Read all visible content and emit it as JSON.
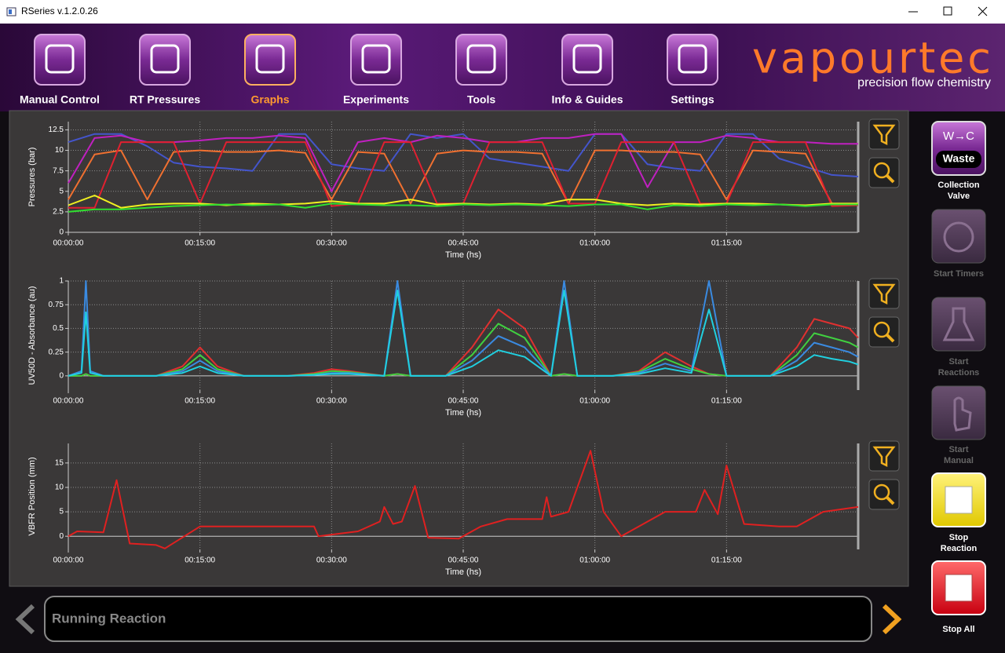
{
  "window": {
    "title": "RSeries v.1.2.0.26"
  },
  "nav": [
    "Manual Control",
    "RT Pressures",
    "Graphs",
    "Experiments",
    "Tools",
    "Info & Guides",
    "Settings"
  ],
  "logo": {
    "name": "vapourtec",
    "tagline": "precision flow chemistry"
  },
  "chart_data": [
    {
      "type": "line",
      "xlabel": "Time (hs)",
      "ylabel": "Pressures (bar)",
      "grid": true,
      "xlim": [
        0,
        90
      ],
      "ylim": [
        0,
        13.5
      ],
      "xticks": [
        {
          "value": 0,
          "label": "00:00:00"
        },
        {
          "value": 15,
          "label": "00:15:00"
        },
        {
          "value": 30,
          "label": "00:30:00"
        },
        {
          "value": 45,
          "label": "00:45:00"
        },
        {
          "value": 60,
          "label": "01:00:00"
        },
        {
          "value": 75,
          "label": "01:15:00"
        }
      ],
      "yticks": [
        0,
        2.5,
        5,
        7.5,
        10,
        12.5
      ],
      "x": [
        0,
        3,
        6,
        9,
        12,
        15,
        18,
        21,
        24,
        27,
        30,
        33,
        36,
        39,
        42,
        45,
        48,
        51,
        54,
        57,
        60,
        63,
        66,
        69,
        72,
        75,
        78,
        81,
        84,
        87,
        90
      ],
      "series": [
        {
          "color": "#4455cc",
          "values": [
            11,
            12,
            12,
            10.5,
            8.5,
            8,
            7.8,
            7.5,
            12,
            12,
            8.3,
            7.8,
            7.5,
            12,
            11.5,
            12,
            9,
            8.5,
            8,
            7.5,
            12,
            12,
            8.3,
            7.8,
            7.5,
            12,
            12,
            9,
            8,
            7,
            6.8
          ]
        },
        {
          "color": "#c020c0",
          "values": [
            6,
            11.5,
            11.8,
            11,
            11,
            11.2,
            11.5,
            11.5,
            11.8,
            11.5,
            5,
            11,
            11.5,
            11,
            11.8,
            11.5,
            11,
            11,
            11.5,
            11.5,
            12,
            12,
            5.5,
            11,
            11,
            11.8,
            11.5,
            11,
            11,
            10.8,
            10.8
          ]
        },
        {
          "color": "#f07030",
          "values": [
            4,
            9.5,
            10,
            4,
            9.8,
            10,
            9.8,
            9.8,
            10,
            9.7,
            4,
            9.8,
            9.6,
            3.5,
            9.6,
            10,
            9.8,
            9.8,
            9.6,
            3.5,
            10,
            10,
            9.8,
            9.8,
            9.5,
            4,
            10,
            9.8,
            9.6,
            3.5,
            3.5
          ]
        },
        {
          "color": "#e02030",
          "values": [
            3,
            3,
            11,
            11,
            11,
            3.5,
            11,
            11,
            11,
            11,
            3.2,
            3.5,
            11,
            11,
            3.5,
            3.5,
            11,
            11,
            11,
            3.5,
            3.5,
            11,
            11,
            11,
            3.5,
            3.5,
            11,
            11,
            11,
            3.2,
            3.3
          ]
        },
        {
          "color": "#f0f020",
          "values": [
            3.3,
            4.5,
            3,
            3.4,
            3.5,
            3.5,
            3.3,
            3.5,
            3.4,
            3.5,
            3.8,
            3.5,
            3.5,
            4,
            3.4,
            3.5,
            3.4,
            3.5,
            3.4,
            4,
            4,
            3.5,
            3.3,
            3.5,
            3.4,
            3.5,
            3.5,
            3.4,
            3.3,
            3.5,
            3.5
          ]
        },
        {
          "color": "#30e030",
          "values": [
            2.5,
            2.8,
            2.8,
            3,
            3.2,
            3.3,
            3.4,
            3.3,
            3.4,
            3,
            3.5,
            3.4,
            3.3,
            3.3,
            3.2,
            3.4,
            3.3,
            3.4,
            3.3,
            3.2,
            3.4,
            3.4,
            2.8,
            3.3,
            3.2,
            3.4,
            3.3,
            3.4,
            3.2,
            3.4,
            3.4
          ]
        }
      ]
    },
    {
      "type": "line",
      "xlabel": "Time (hs)",
      "ylabel": "UV50D - Absorbance (au)",
      "grid": true,
      "xlim": [
        0,
        90
      ],
      "ylim": [
        -0.15,
        1
      ],
      "xticks": [
        {
          "value": 0,
          "label": "00:00:00"
        },
        {
          "value": 15,
          "label": "00:15:00"
        },
        {
          "value": 30,
          "label": "00:30:00"
        },
        {
          "value": 45,
          "label": "00:45:00"
        },
        {
          "value": 60,
          "label": "01:00:00"
        },
        {
          "value": 75,
          "label": "01:15:00"
        }
      ],
      "yticks": [
        0,
        0.25,
        0.5,
        0.75,
        1
      ],
      "x": [
        0,
        1.5,
        2,
        2.5,
        4,
        10,
        13,
        15,
        17,
        20,
        25,
        28,
        30,
        32,
        36,
        37.5,
        39,
        43,
        46,
        49,
        52,
        55,
        56.5,
        58,
        62,
        65,
        68,
        71,
        73,
        75,
        80,
        83,
        85,
        87,
        89,
        90
      ],
      "series": [
        {
          "color": "#e03030",
          "values": [
            0,
            0,
            0.02,
            0,
            0,
            0,
            0.1,
            0.3,
            0.1,
            0,
            0,
            0.03,
            0.07,
            0.05,
            0,
            0.02,
            0,
            0,
            0.3,
            0.7,
            0.5,
            0,
            0.02,
            0,
            0,
            0.05,
            0.25,
            0.1,
            0.02,
            0,
            0,
            0.3,
            0.6,
            0.55,
            0.5,
            0.4
          ]
        },
        {
          "color": "#40d040",
          "values": [
            0,
            0,
            0.02,
            0,
            0,
            0,
            0.07,
            0.22,
            0.07,
            0,
            0,
            0.02,
            0.05,
            0.04,
            0,
            0.02,
            0,
            0,
            0.22,
            0.55,
            0.4,
            0,
            0.02,
            0,
            0,
            0.04,
            0.18,
            0.07,
            0.02,
            0,
            0,
            0.22,
            0.45,
            0.4,
            0.35,
            0.3
          ]
        },
        {
          "color": "#3a8ae0",
          "values": [
            0,
            0.05,
            1,
            0.05,
            0,
            0,
            0.05,
            0.16,
            0.05,
            0,
            0,
            0.01,
            0.03,
            0.03,
            0,
            1,
            0,
            0,
            0.16,
            0.42,
            0.3,
            0,
            1,
            0,
            0,
            0.03,
            0.13,
            0.05,
            1,
            0,
            0,
            0.16,
            0.35,
            0.3,
            0.25,
            0.2
          ]
        },
        {
          "color": "#20d0e0",
          "values": [
            0,
            0.03,
            0.67,
            0.03,
            0,
            0,
            0.03,
            0.1,
            0.03,
            0,
            0,
            0.01,
            0.02,
            0.02,
            0,
            0.9,
            0,
            0,
            0.1,
            0.27,
            0.2,
            0,
            0.9,
            0,
            0,
            0.02,
            0.08,
            0.03,
            0.7,
            0,
            0,
            0.1,
            0.22,
            0.18,
            0.15,
            0.12
          ]
        }
      ]
    },
    {
      "type": "line",
      "xlabel": "Time (hs)",
      "ylabel": "VBFR Position (mm)",
      "grid": true,
      "xlim": [
        0,
        90
      ],
      "ylim": [
        -2.7,
        19
      ],
      "xticks": [
        {
          "value": 0,
          "label": "00:00:00"
        },
        {
          "value": 15,
          "label": "00:15:00"
        },
        {
          "value": 30,
          "label": "00:30:00"
        },
        {
          "value": 45,
          "label": "00:45:00"
        },
        {
          "value": 60,
          "label": "01:00:00"
        },
        {
          "value": 75,
          "label": "01:15:00"
        }
      ],
      "yticks": [
        0,
        5,
        10,
        15
      ],
      "x": [
        0,
        1,
        4,
        5.5,
        7,
        10,
        11,
        15,
        20,
        28,
        28.5,
        33,
        35.5,
        36,
        37,
        38,
        39.5,
        41,
        44.5,
        47,
        50,
        54,
        54.5,
        55,
        57,
        59.5,
        61,
        63,
        68,
        71.5,
        72.5,
        74,
        75,
        77,
        81,
        83,
        86,
        90
      ],
      "series": [
        {
          "color": "#e02020",
          "values": [
            0,
            1,
            0.8,
            11.5,
            -1.5,
            -1.8,
            -2.5,
            2,
            2,
            2,
            0,
            1,
            3,
            6,
            2.5,
            3,
            10.3,
            -0.3,
            -0.5,
            2,
            3.5,
            3.5,
            8,
            4,
            5,
            17.5,
            5,
            0,
            5,
            5,
            9.5,
            4.5,
            14.5,
            2.5,
            2,
            2,
            5,
            6
          ]
        }
      ]
    }
  ],
  "side_panel": {
    "valve": {
      "badge": "W→C",
      "state": "Waste",
      "label": "Collection Valve"
    },
    "buttons": [
      "Start Timers",
      "Start Reactions",
      "Start Manual",
      "Stop Reaction",
      "Stop All"
    ]
  },
  "status": "Running Reaction"
}
